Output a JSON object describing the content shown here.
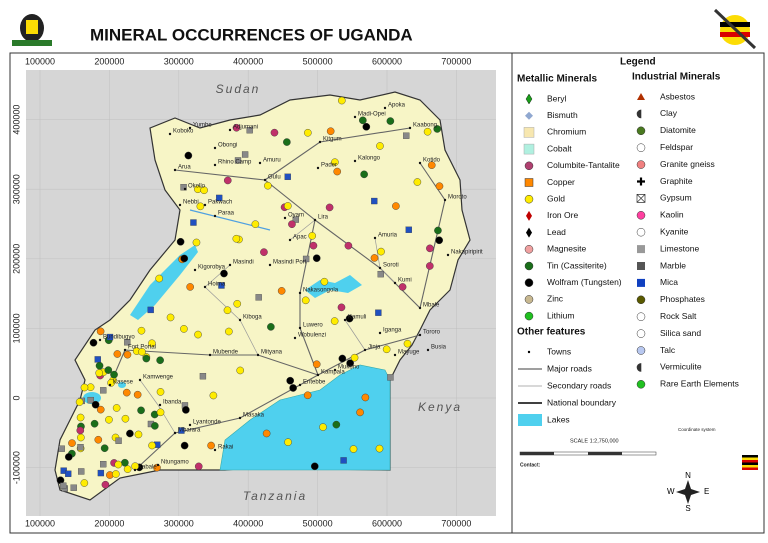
{
  "header": {
    "title": "MINERAL OCCURRENCES OF UGANDA"
  },
  "map": {
    "xticks": [
      100000,
      200000,
      300000,
      400000,
      500000,
      600000,
      700000
    ],
    "yticks": [
      400000,
      300000,
      200000,
      100000,
      0,
      -100000
    ],
    "countries": [
      "Sudan",
      "Kenya",
      "Tanzania"
    ],
    "towns": [
      "Koboko",
      "Yumbe",
      "Adjumani",
      "Obongi",
      "Madi-Opei",
      "Apoka",
      "Kaabong",
      "Kitgum",
      "Pader",
      "Kalongo",
      "Kotido",
      "Arua",
      "Rhino Camp",
      "Amuru",
      "Gulu",
      "Okollo",
      "Nebbi",
      "Pakwach",
      "Paraa",
      "Oyam",
      "Lira",
      "Amuria",
      "Moroto",
      "Apac",
      "Nakapiripirit",
      "Masindi",
      "Masindi Port",
      "Kigorobya",
      "Hoima",
      "Soroti",
      "Kumi",
      "Mbale",
      "Tororo",
      "Iganga",
      "Jinja",
      "Kampala",
      "Entebbe",
      "Mityana",
      "Mubende",
      "Kiboga",
      "Nakasongola",
      "Luwero",
      "Wobulenzi",
      "Kamuli",
      "Mukono",
      "Bundibugyo",
      "Fort Portal",
      "Kasese",
      "Kamwenge",
      "Ibanda",
      "Masaka",
      "Mbarara",
      "Lyantonde",
      "Rakai",
      "Ntungamo",
      "Kabale",
      "Busia",
      "Mayuge"
    ]
  },
  "legend": {
    "title": "Legend",
    "metallic": {
      "heading": "Metallic Minerals",
      "items": [
        "Beryl",
        "Bismuth",
        "Chromium",
        "Cobalt",
        "Columbite-Tantalite",
        "Copper",
        "Gold",
        "Iron  Ore",
        "Lead",
        "Magnesite",
        "Tin (Cassiterite)",
        "Wolfram (Tungsten)",
        "Zinc",
        "Lithium"
      ]
    },
    "other": {
      "heading": "Other features",
      "items": [
        "Towns",
        "Major roads",
        "Secondary roads",
        "National boundary",
        "Lakes"
      ]
    },
    "industrial": {
      "heading": "Industrial Minerals",
      "items": [
        "Asbestos",
        "Clay",
        "Diatomite",
        "Feldspar",
        "Granite gneiss",
        "Graphite",
        "Gypsum",
        "Kaolin",
        "Kyanite",
        "Limestone",
        "Marble",
        "Mica",
        "Phosphates",
        "Rock Salt",
        "Silica sand",
        "Talc",
        "Vermiculite",
        "Rare Earth Elements"
      ]
    }
  },
  "scale": "SCALE 1:2,750,000",
  "contact": "Contact:",
  "coordinates": "Coordinate system",
  "compass": [
    "N",
    "E",
    "S",
    "W"
  ]
}
